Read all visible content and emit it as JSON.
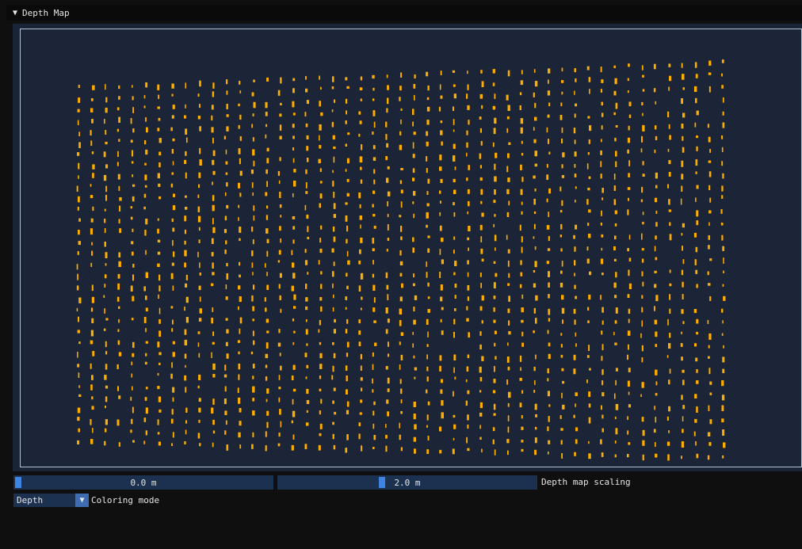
{
  "window": {
    "title": "Depth Map",
    "collapse_icon": "triangle-down-icon"
  },
  "depth_view": {
    "point_color": "#ffae00",
    "background_color": "#1c2537",
    "border_color": "#b4c2d4"
  },
  "scaling": {
    "min_value_text": "0.0 m",
    "max_value_text": "2.0 m",
    "min_fraction": 0.0,
    "max_fraction": 0.4,
    "label": "Depth map scaling"
  },
  "coloring": {
    "selected": "Depth",
    "label": "Coloring mode",
    "dropdown_icon": "triangle-down-icon"
  },
  "colors": {
    "slider_bg": "#1c3150",
    "slider_grab": "#3d85e0",
    "combo_button": "#3d6db0"
  }
}
